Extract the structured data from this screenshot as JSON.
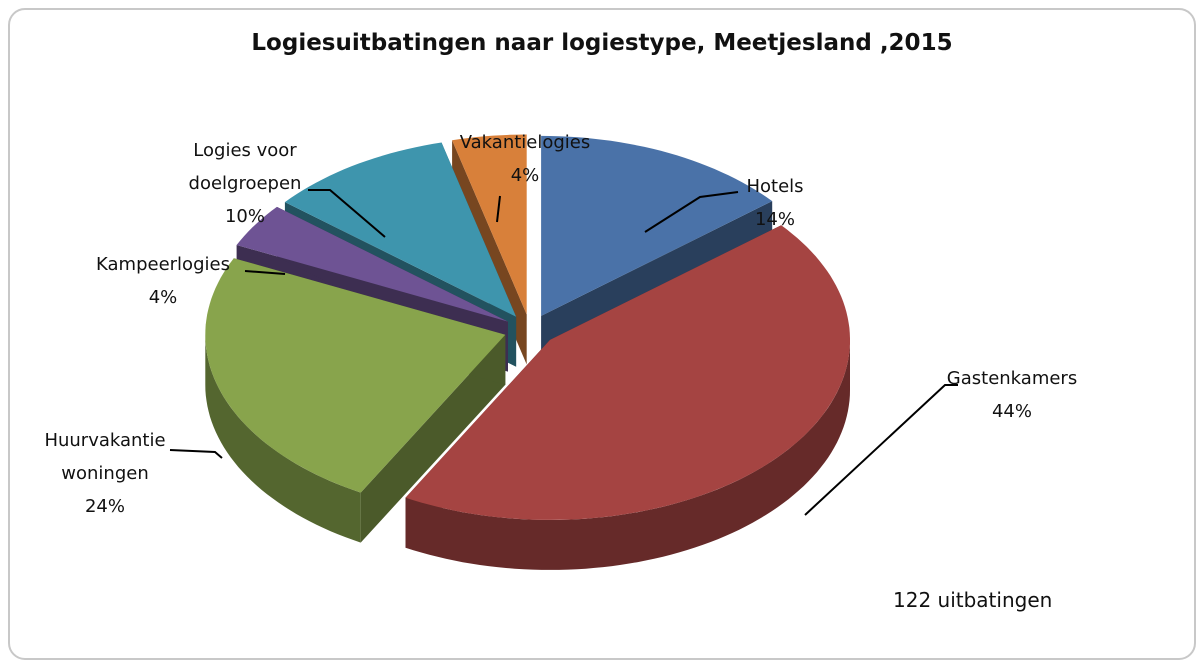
{
  "chart_data": {
    "type": "pie",
    "title": "Logiesuitbatingen naar logiestype, Meetjesland ,2015",
    "categories": [
      "Hotels",
      "Gastenkamers",
      "Huurvakantie woningen",
      "Kampeerlogies",
      "Logies voor doelgroepen",
      "Vakantielogies"
    ],
    "values": [
      14,
      44,
      24,
      4,
      10,
      4
    ],
    "value_labels": [
      "14%",
      "44%",
      "24%",
      "4%",
      "10%",
      "4%"
    ],
    "colors": [
      "#4a72a8",
      "#a54442",
      "#88a44c",
      "#6e5394",
      "#3e95ad",
      "#d8803a"
    ],
    "annotation": "122 uitbatingen"
  }
}
